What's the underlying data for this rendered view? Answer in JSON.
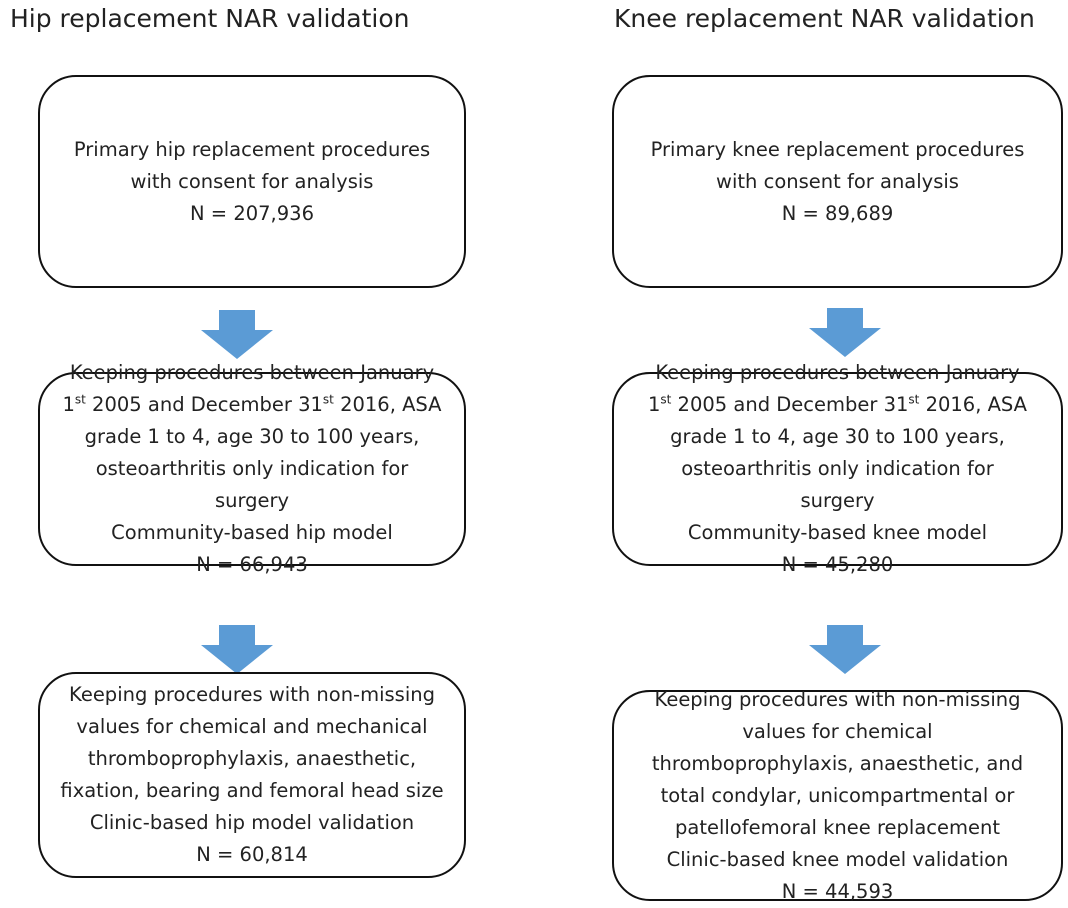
{
  "columns": [
    {
      "title": "Hip replacement NAR validation",
      "boxes": [
        {
          "lines": [
            "Primary hip replacement procedures",
            "with consent for analysis",
            "N = 207,936"
          ]
        },
        {
          "lines": [
            "Keeping procedures between January",
            [
              {
                "text": "1"
              },
              {
                "text": "st",
                "superscript": true
              },
              {
                "text": " 2005 and December 31"
              },
              {
                "text": "st",
                "superscript": true
              },
              {
                "text": " 2016, ASA"
              }
            ],
            "grade 1 to 4, age 30 to 100 years,",
            "osteoarthritis only indication for",
            "surgery",
            "Community-based hip model",
            "N = 66,943"
          ]
        },
        {
          "lines": [
            "Keeping procedures with non-missing",
            "values for chemical and mechanical",
            "thromboprophylaxis, anaesthetic,",
            "fixation, bearing and femoral head size",
            "Clinic-based hip model validation",
            "N = 60,814"
          ]
        }
      ]
    },
    {
      "title": "Knee replacement NAR validation",
      "boxes": [
        {
          "lines": [
            "Primary knee replacement procedures",
            "with consent for analysis",
            "N = 89,689"
          ]
        },
        {
          "lines": [
            "Keeping procedures between January",
            [
              {
                "text": "1"
              },
              {
                "text": "st",
                "superscript": true
              },
              {
                "text": " 2005 and December 31"
              },
              {
                "text": "st",
                "superscript": true
              },
              {
                "text": " 2016, ASA"
              }
            ],
            "grade 1 to 4, age 30 to 100 years,",
            "osteoarthritis only indication for",
            "surgery",
            "Community-based knee model",
            "N = 45,280"
          ]
        },
        {
          "lines": [
            "Keeping procedures with non-missing",
            "values for chemical",
            "thromboprophylaxis, anaesthetic, and",
            "total condylar, unicompartmental or",
            "patellofemoral knee replacement",
            "Clinic-based knee model validation",
            "N = 44,593"
          ]
        }
      ]
    }
  ]
}
